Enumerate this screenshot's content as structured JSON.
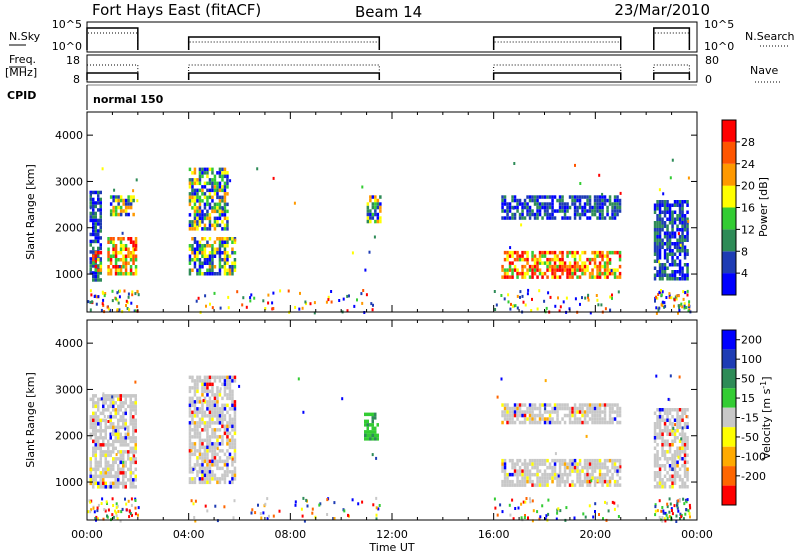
{
  "header": {
    "station": "Fort Hays East (fitACF)",
    "beam": "Beam 14",
    "date": "23/Mar/2010"
  },
  "sky_panel": {
    "left_label": "N.Sky",
    "right_label": "N.Search",
    "left_ticks": [
      "10^5",
      "10^0"
    ],
    "right_ticks": [
      "10^5",
      "10^0"
    ]
  },
  "freq_panel": {
    "left_label_1": "Freq.",
    "left_label_2": "[MHz]",
    "right_label": "Nave",
    "left_ticks": [
      "18",
      "8"
    ],
    "right_ticks": [
      "80",
      "0"
    ]
  },
  "cpid": {
    "label": "CPID",
    "program": "normal 150"
  },
  "time_axis": {
    "label": "Time UT",
    "ticks": [
      "00:00",
      "04:00",
      "08:00",
      "12:00",
      "16:00",
      "20:00",
      "00:00"
    ],
    "range_hours": [
      0,
      24
    ]
  },
  "range_axis": {
    "label": "Slant Range [km]",
    "ticks": [
      "1000",
      "2000",
      "3000",
      "4000"
    ],
    "range_km": [
      180,
      4500
    ]
  },
  "power_colorbar": {
    "label": "Power [dB]",
    "ticks": [
      "4",
      "8",
      "12",
      "16",
      "20",
      "24",
      "28"
    ],
    "colors": [
      "#0000ff",
      "#1e3cb4",
      "#2e8b57",
      "#33cc33",
      "#ffff00",
      "#ff9900",
      "#ff5500",
      "#ff0000"
    ]
  },
  "velocity_colorbar": {
    "label_prefix": "Velocity [m s",
    "label_sup": "-1",
    "label_suffix": "]",
    "ticks": [
      "200",
      "100",
      "50",
      "15",
      "-15",
      "-50",
      "-100",
      "-200"
    ],
    "colors": [
      "#0000ff",
      "#1e3cb4",
      "#2e8b57",
      "#33cc33",
      "#c8c8c8",
      "#ffff00",
      "#ffaa00",
      "#ff6600",
      "#ff0000"
    ]
  },
  "chart_data": {
    "type": "heatmap",
    "data_intervals_hours": [
      [
        0.0,
        2.0
      ],
      [
        4.0,
        11.5
      ],
      [
        16.0,
        21.0
      ],
      [
        22.3,
        23.7
      ]
    ],
    "sky_noise_level": [
      [
        0.0,
        2.0,
        "high"
      ],
      [
        4.0,
        11.5,
        "mid"
      ],
      [
        16.0,
        21.0,
        "mid"
      ],
      [
        22.3,
        23.7,
        "high"
      ]
    ],
    "power_regions": [
      {
        "t": [
          0.1,
          0.5
        ],
        "r": [
          900,
          2800
        ],
        "level": "low"
      },
      {
        "t": [
          0.2,
          0.5
        ],
        "r": [
          1100,
          1500
        ],
        "level": "high"
      },
      {
        "t": [
          0.8,
          1.9
        ],
        "r": [
          1000,
          1800
        ],
        "level": "high"
      },
      {
        "t": [
          0.9,
          1.8
        ],
        "r": [
          2300,
          2700
        ],
        "level": "mid"
      },
      {
        "t": [
          4.0,
          5.5
        ],
        "r": [
          1950,
          3300
        ],
        "level": "mid"
      },
      {
        "t": [
          4.0,
          5.8
        ],
        "r": [
          1000,
          1800
        ],
        "level": "mid"
      },
      {
        "t": [
          11.0,
          11.5
        ],
        "r": [
          2100,
          2700
        ],
        "level": "mid"
      },
      {
        "t": [
          16.3,
          21.0
        ],
        "r": [
          2200,
          2700
        ],
        "level": "low"
      },
      {
        "t": [
          16.3,
          21.0
        ],
        "r": [
          900,
          1500
        ],
        "level": "high"
      },
      {
        "t": [
          22.3,
          23.6
        ],
        "r": [
          900,
          2600
        ],
        "level": "low"
      }
    ],
    "velocity_regions": [
      {
        "t": [
          0.1,
          1.9
        ],
        "r": [
          900,
          2900
        ],
        "level": "near_zero"
      },
      {
        "t": [
          4.0,
          5.8
        ],
        "r": [
          1000,
          3300
        ],
        "level": "near_zero"
      },
      {
        "t": [
          10.9,
          11.4
        ],
        "r": [
          1900,
          2500
        ],
        "level": "positive"
      },
      {
        "t": [
          16.3,
          21.0
        ],
        "r": [
          2300,
          2700
        ],
        "level": "near_zero"
      },
      {
        "t": [
          16.3,
          21.0
        ],
        "r": [
          900,
          1500
        ],
        "level": "near_zero"
      },
      {
        "t": [
          22.3,
          23.6
        ],
        "r": [
          900,
          2600
        ],
        "level": "near_zero"
      }
    ]
  }
}
